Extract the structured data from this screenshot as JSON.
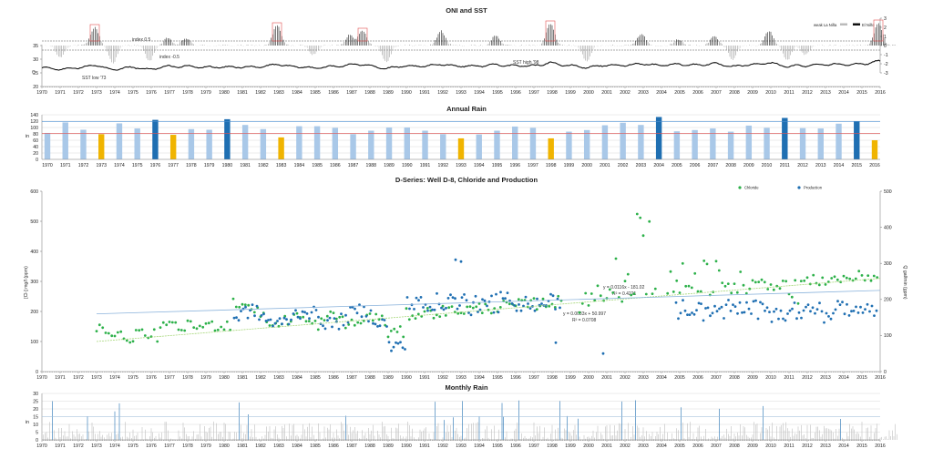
{
  "charts": {
    "oni": {
      "title": "ONI and SST",
      "legend": [
        "weak La Niña",
        "El Niño"
      ],
      "annotations": {
        "index_pos": "index 0.5",
        "index_neg": "index -0.5",
        "sst_low": "SST low '73",
        "sst_high": "SST high '98"
      },
      "left_axis_ticks": [
        "35",
        "30",
        "25",
        "20"
      ],
      "left_axis_unit": "C",
      "right_axis_ticks": [
        "3",
        "2",
        "1",
        "0",
        "-1",
        "-2",
        "-3"
      ]
    },
    "rain": {
      "title": "Annual Rain",
      "y_ticks": [
        "140",
        "120",
        "100",
        "80",
        "60",
        "40",
        "20",
        "0"
      ],
      "y_unit": "in"
    },
    "dseries": {
      "title": "D-Series: Well D-8, Chloride and Production",
      "ylabel_left": "[Cl-] mg/l (ppm)",
      "ylabel_right": "Q gal/min (gpm)",
      "left_ticks": [
        "600",
        "500",
        "400",
        "300",
        "200",
        "100",
        "0"
      ],
      "right_ticks": [
        "500",
        "400",
        "300",
        "200",
        "100",
        "0"
      ],
      "legend": [
        "Chloride",
        "Production"
      ],
      "eq1": "y = 0.0116x - 181.02",
      "r1": "R² = 0.4221",
      "eq2": "y = 0.0033x + 50.997",
      "r2": "R² = 0.0708"
    },
    "monthly": {
      "title": "Monthly Rain",
      "y_ticks": [
        "30",
        "25",
        "20",
        "15",
        "10",
        "5",
        "0"
      ],
      "y_unit": "in"
    }
  },
  "chart_data": [
    {
      "type": "bar",
      "title": "ONI and SST",
      "x_years": [
        1970,
        2016
      ],
      "series": [
        {
          "name": "El Niño",
          "events": [
            {
              "year": 1972.9,
              "peak": 2.0
            },
            {
              "year": 1976.9,
              "peak": 0.8
            },
            {
              "year": 1977.9,
              "peak": 0.8
            },
            {
              "year": 1982.9,
              "peak": 2.2
            },
            {
              "year": 1986.9,
              "peak": 1.2
            },
            {
              "year": 1987.6,
              "peak": 1.6
            },
            {
              "year": 1991.9,
              "peak": 1.6
            },
            {
              "year": 1994.9,
              "peak": 1.1
            },
            {
              "year": 1997.9,
              "peak": 2.4
            },
            {
              "year": 2002.9,
              "peak": 1.3
            },
            {
              "year": 2004.9,
              "peak": 0.7
            },
            {
              "year": 2006.9,
              "peak": 1.0
            },
            {
              "year": 2009.9,
              "peak": 1.6
            },
            {
              "year": 2015.9,
              "peak": 2.5
            }
          ]
        },
        {
          "name": "weak La Niña",
          "events": [
            {
              "year": 1971.0,
              "peak": -1.3
            },
            {
              "year": 1973.9,
              "peak": -1.9
            },
            {
              "year": 1975.9,
              "peak": -1.7
            },
            {
              "year": 1984.9,
              "peak": -1.0
            },
            {
              "year": 1988.9,
              "peak": -1.8
            },
            {
              "year": 1999.9,
              "peak": -1.7
            },
            {
              "year": 2007.9,
              "peak": -1.5
            },
            {
              "year": 2010.9,
              "peak": -1.6
            },
            {
              "year": 2011.9,
              "peak": -1.0
            }
          ]
        }
      ],
      "sst": {
        "ylim": [
          20,
          35
        ],
        "range": [
          25,
          29.5
        ]
      },
      "y2lim": [
        -3,
        3
      ]
    },
    {
      "type": "bar",
      "title": "Annual Rain",
      "categories": [
        "1970",
        "1971",
        "1972",
        "1973",
        "1974",
        "1975",
        "1976",
        "1977",
        "1978",
        "1979",
        "1980",
        "1981",
        "1982",
        "1983",
        "1984",
        "1985",
        "1986",
        "1987",
        "1988",
        "1989",
        "1990",
        "1991",
        "1992",
        "1993",
        "1994",
        "1995",
        "1996",
        "1997",
        "1998",
        "1999",
        "2000",
        "2001",
        "2002",
        "2003",
        "2004",
        "2005",
        "2006",
        "2007",
        "2008",
        "2009",
        "2010",
        "2011",
        "2012",
        "2013",
        "2014",
        "2015",
        "2016"
      ],
      "values": [
        83,
        116,
        93,
        79,
        113,
        97,
        124,
        77,
        95,
        93,
        126,
        108,
        95,
        69,
        104,
        104,
        99,
        79,
        90,
        100,
        100,
        90,
        79,
        66,
        78,
        90,
        103,
        99,
        66,
        87,
        92,
        107,
        115,
        108,
        133,
        88,
        92,
        97,
        87,
        106,
        99,
        130,
        98,
        97,
        112,
        120,
        60
      ],
      "bar_types": [
        "n",
        "n",
        "n",
        "dry",
        "n",
        "n",
        "wet",
        "dry",
        "n",
        "n",
        "wet",
        "n",
        "n",
        "dry",
        "n",
        "n",
        "n",
        "n",
        "n",
        "n",
        "n",
        "n",
        "n",
        "dry",
        "n",
        "n",
        "n",
        "n",
        "dry",
        "n",
        "n",
        "n",
        "n",
        "n",
        "wet",
        "n",
        "n",
        "n",
        "n",
        "n",
        "n",
        "wet",
        "n",
        "n",
        "n",
        "wet",
        "dry"
      ],
      "colors": {
        "n": "#a9c8e8",
        "wet": "#1f6fb2",
        "dry": "#f0b400"
      },
      "reference_lines": [
        119,
        82
      ],
      "ylim": [
        0,
        140
      ]
    },
    {
      "type": "scatter",
      "title": "D-Series: Well D-8, Chloride and Production",
      "xlim": [
        1970,
        2016
      ],
      "ylim_left": [
        0,
        600
      ],
      "ylim_right": [
        0,
        500
      ],
      "series": [
        {
          "name": "Chloride",
          "color": "#2db14a",
          "axis": "left"
        },
        {
          "name": "Production",
          "color": "#1f6fb2",
          "axis": "right"
        }
      ],
      "trend_lines": [
        {
          "series": "Chloride",
          "from": [
            1973,
            100
          ],
          "to": [
            2016,
            310
          ]
        },
        {
          "series": "Production",
          "from": [
            1973,
            160
          ],
          "to": [
            2016,
            225
          ]
        }
      ]
    },
    {
      "type": "bar",
      "title": "Monthly Rain",
      "xlim": [
        1970,
        2016
      ],
      "ylim": [
        0,
        30
      ],
      "highlight_color": "#1f6fb2",
      "base_color": "#bfbfbf"
    }
  ],
  "x_years": [
    "1970",
    "1971",
    "1972",
    "1973",
    "1974",
    "1975",
    "1976",
    "1977",
    "1978",
    "1979",
    "1980",
    "1981",
    "1982",
    "1983",
    "1984",
    "1985",
    "1986",
    "1987",
    "1988",
    "1989",
    "1990",
    "1991",
    "1992",
    "1993",
    "1994",
    "1995",
    "1996",
    "1997",
    "1998",
    "1999",
    "2000",
    "2001",
    "2002",
    "2003",
    "2004",
    "2005",
    "2006",
    "2007",
    "2008",
    "2009",
    "2010",
    "2011",
    "2012",
    "2013",
    "2014",
    "2015",
    "2016"
  ]
}
